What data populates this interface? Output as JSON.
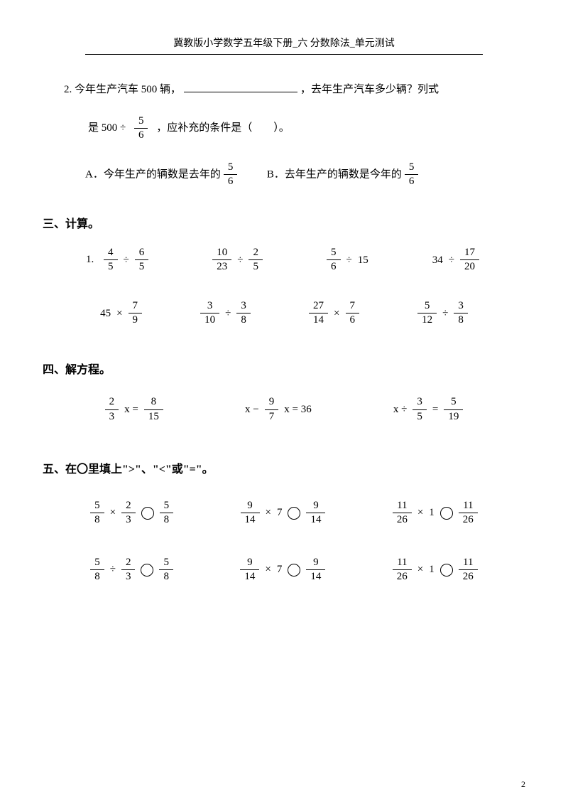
{
  "header": "冀教版小学数学五年级下册_六 分数除法_单元测试",
  "q2": {
    "label": "2. ",
    "text_a": "今年生产汽车 500 辆，",
    "text_b": "，去年生产汽车多少辆？列式",
    "line2_a": "是 500 ÷",
    "frac_num": "5",
    "frac_den": "6",
    "line2_b": "，应补充的条件是（　　）。",
    "optA_label": "A．",
    "optA_text": "今年生产的辆数是去年的",
    "optA_num": "5",
    "optA_den": "6",
    "optB_label": "B．",
    "optB_text": "去年生产的辆数是今年的",
    "optB_num": "5",
    "optB_den": "6"
  },
  "sec3": {
    "title": "三、计算。",
    "label1": "1. ",
    "row1": [
      {
        "a_n": "4",
        "a_d": "5",
        "op": "÷",
        "b_n": "6",
        "b_d": "5"
      },
      {
        "a_n": "10",
        "a_d": "23",
        "op": "÷",
        "b_n": "2",
        "b_d": "5"
      },
      {
        "a_n": "5",
        "a_d": "6",
        "op": "÷",
        "b": "15"
      },
      {
        "a": "34",
        "op": "÷",
        "b_n": "17",
        "b_d": "20"
      }
    ],
    "row2": [
      {
        "a": "45",
        "op": "×",
        "b_n": "7",
        "b_d": "9"
      },
      {
        "a_n": "3",
        "a_d": "10",
        "op": "÷",
        "b_n": "3",
        "b_d": "8"
      },
      {
        "a_n": "27",
        "a_d": "14",
        "op": "×",
        "b_n": "7",
        "b_d": "6"
      },
      {
        "a_n": "5",
        "a_d": "12",
        "op": "÷",
        "b_n": "3",
        "b_d": "8"
      }
    ]
  },
  "sec4": {
    "title": "四、解方程。",
    "eqs": [
      {
        "parts": [
          {
            "frac": [
              "2",
              "3"
            ]
          },
          {
            "t": "x ="
          },
          {
            "frac": [
              "8",
              "15"
            ]
          }
        ]
      },
      {
        "parts": [
          {
            "t": "x −"
          },
          {
            "frac": [
              "9",
              "7"
            ]
          },
          {
            "t": "x = 36"
          }
        ]
      },
      {
        "parts": [
          {
            "t": "x ÷"
          },
          {
            "frac": [
              "3",
              "5"
            ]
          },
          {
            "t": "="
          },
          {
            "frac": [
              "5",
              "19"
            ]
          }
        ]
      }
    ]
  },
  "sec5": {
    "title": "五、在〇里填上\">\"、\"<\"或\"=\"。",
    "row1": [
      {
        "a": [
          "5",
          "8"
        ],
        "op": "×",
        "b": [
          "2",
          "3"
        ],
        "c": [
          "5",
          "8"
        ]
      },
      {
        "a": [
          "9",
          "14"
        ],
        "op": "×",
        "bw": "7",
        "c": [
          "9",
          "14"
        ]
      },
      {
        "a": [
          "11",
          "26"
        ],
        "op": "×",
        "bw": "1",
        "c": [
          "11",
          "26"
        ]
      }
    ],
    "row2": [
      {
        "a": [
          "5",
          "8"
        ],
        "op": "÷",
        "b": [
          "2",
          "3"
        ],
        "c": [
          "5",
          "8"
        ]
      },
      {
        "a": [
          "9",
          "14"
        ],
        "op": "×",
        "bw": "7",
        "c": [
          "9",
          "14"
        ]
      },
      {
        "a": [
          "11",
          "26"
        ],
        "op": "×",
        "bw": "1",
        "c": [
          "11",
          "26"
        ]
      }
    ]
  },
  "page_num": "2"
}
